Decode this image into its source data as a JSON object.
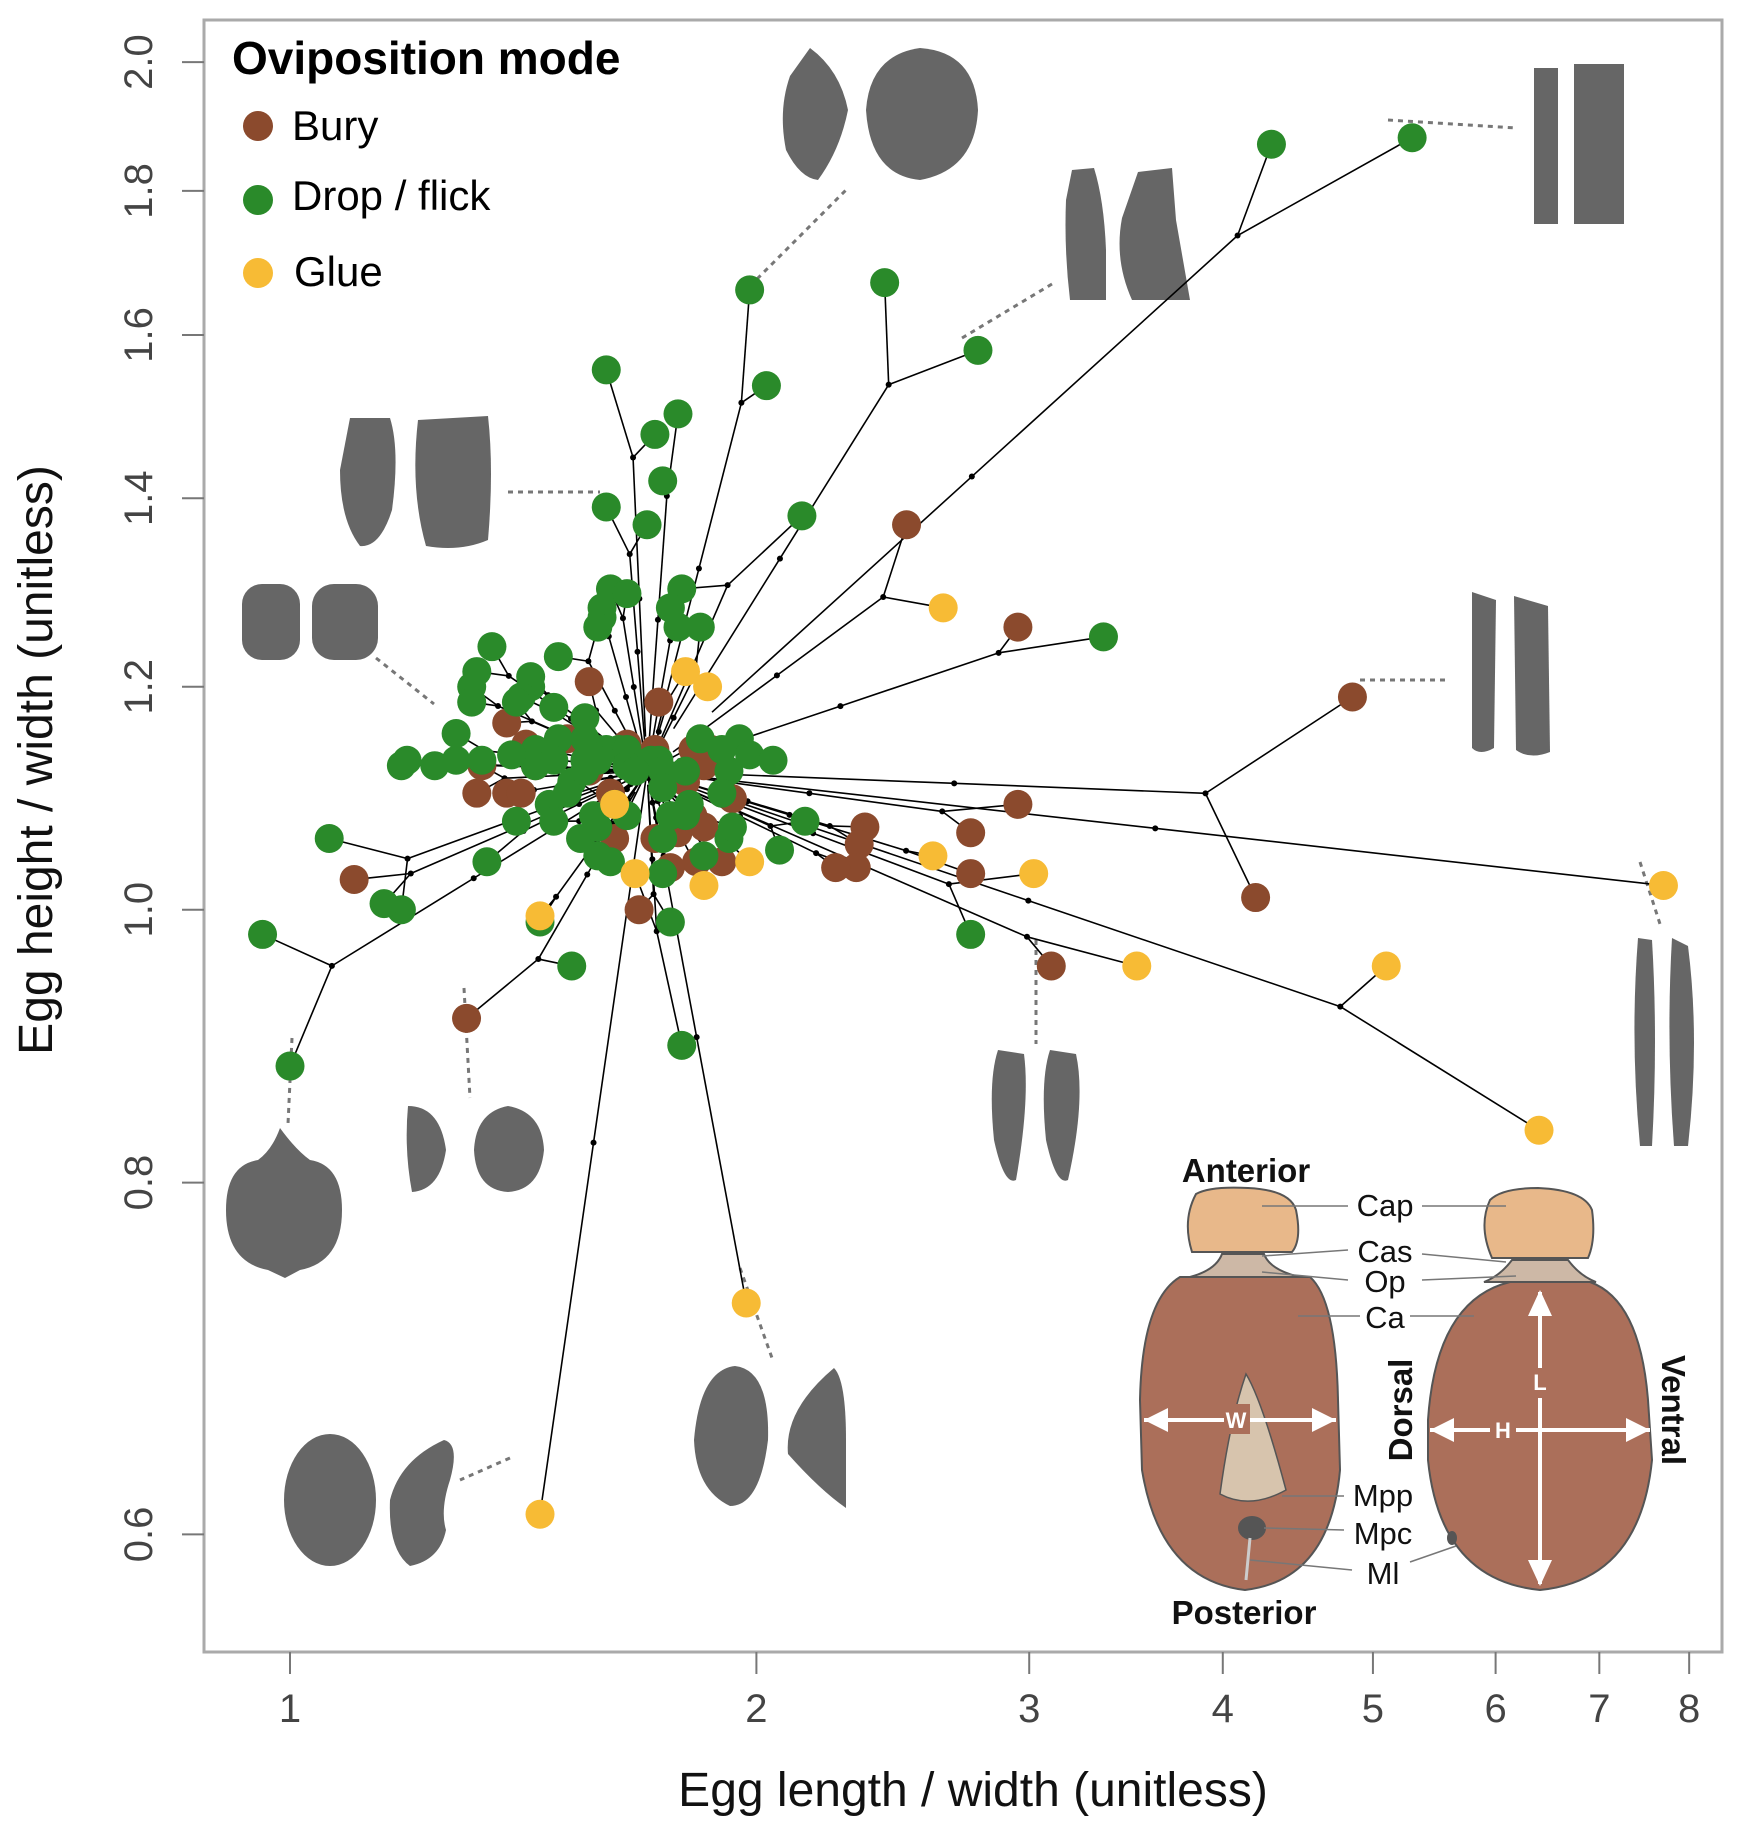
{
  "chart_data": {
    "type": "scatter",
    "x_scale": "log",
    "y_scale": "log",
    "xlabel": "Egg length / width (unitless)",
    "ylabel": "Egg height / width (unitless)",
    "xlim": [
      0.88,
      8.4
    ],
    "ylim": [
      0.545,
      2.07
    ],
    "x_ticks": [
      1,
      2,
      3,
      4,
      5,
      6,
      7,
      8
    ],
    "y_ticks": [
      0.6,
      0.8,
      1.0,
      1.2,
      1.4,
      1.6,
      1.8,
      2.0
    ],
    "x_tick_labels": [
      "1",
      "2",
      "3",
      "4",
      "5",
      "6",
      "7",
      "8"
    ],
    "y_tick_labels": [
      "0.6",
      "0.8",
      "1.0",
      "1.2",
      "1.4",
      "1.6",
      "1.8",
      "2.0"
    ],
    "legend": {
      "title": "Oviposition mode",
      "position": "top-left",
      "entries": [
        {
          "key": "bury",
          "label": "Bury",
          "color": "#8b4a2d"
        },
        {
          "key": "drop",
          "label": "Drop / flick",
          "color": "#2a8a2a"
        },
        {
          "key": "glue",
          "label": "Glue",
          "color": "#f7bb35"
        }
      ]
    },
    "series": [
      {
        "name": "Bury",
        "color": "#8b4a2d",
        "points": [
          [
            2.5,
            1.37
          ],
          [
            2.95,
            1.26
          ],
          [
            4.85,
            1.19
          ],
          [
            4.2,
            1.01
          ],
          [
            3.1,
            0.955
          ],
          [
            2.95,
            1.09
          ],
          [
            2.75,
            1.065
          ],
          [
            2.75,
            1.03
          ],
          [
            2.35,
            1.07
          ],
          [
            2.33,
            1.055
          ],
          [
            2.32,
            1.035
          ],
          [
            2.25,
            1.035
          ],
          [
            1.1,
            1.025
          ],
          [
            1.3,
            0.915
          ],
          [
            1.56,
            1.205
          ],
          [
            1.73,
            1.185
          ],
          [
            1.82,
            1.14
          ],
          [
            1.87,
            1.14
          ],
          [
            1.85,
            1.125
          ],
          [
            1.8,
            1.11
          ],
          [
            1.82,
            1.08
          ],
          [
            1.78,
            1.065
          ],
          [
            1.74,
            1.06
          ],
          [
            1.72,
            1.06
          ],
          [
            1.62,
            1.06
          ],
          [
            1.85,
            1.07
          ],
          [
            1.93,
            1.095
          ],
          [
            1.9,
            1.04
          ],
          [
            1.83,
            1.04
          ],
          [
            1.76,
            1.035
          ],
          [
            1.68,
            1.0
          ],
          [
            1.42,
            1.145
          ],
          [
            1.38,
            1.165
          ],
          [
            1.44,
            1.125
          ],
          [
            1.38,
            1.1
          ],
          [
            1.41,
            1.1
          ],
          [
            1.32,
            1.1
          ],
          [
            1.33,
            1.125
          ],
          [
            1.51,
            1.15
          ],
          [
            1.56,
            1.12
          ],
          [
            1.61,
            1.1
          ],
          [
            1.72,
            1.14
          ],
          [
            1.65,
            1.145
          ]
        ]
      },
      {
        "name": "Drop / flick",
        "color": "#2a8a2a",
        "points": [
          [
            4.3,
            1.87
          ],
          [
            5.3,
            1.88
          ],
          [
            3.35,
            1.25
          ],
          [
            2.42,
            1.67
          ],
          [
            1.98,
            1.66
          ],
          [
            2.78,
            1.58
          ],
          [
            1.6,
            1.555
          ],
          [
            2.03,
            1.535
          ],
          [
            1.78,
            1.5
          ],
          [
            1.72,
            1.475
          ],
          [
            1.74,
            1.42
          ],
          [
            1.6,
            1.39
          ],
          [
            1.7,
            1.37
          ],
          [
            2.14,
            1.38
          ],
          [
            1.61,
            1.3
          ],
          [
            1.65,
            1.295
          ],
          [
            1.59,
            1.28
          ],
          [
            1.59,
            1.27
          ],
          [
            1.79,
            1.3
          ],
          [
            1.76,
            1.28
          ],
          [
            1.78,
            1.26
          ],
          [
            1.84,
            1.26
          ],
          [
            1.58,
            1.26
          ],
          [
            1.49,
            1.23
          ],
          [
            1.35,
            1.24
          ],
          [
            1.32,
            1.215
          ],
          [
            1.43,
            1.21
          ],
          [
            1.43,
            1.2
          ],
          [
            1.41,
            1.19
          ],
          [
            1.31,
            1.2
          ],
          [
            1.31,
            1.185
          ],
          [
            1.4,
            1.185
          ],
          [
            1.48,
            1.18
          ],
          [
            1.55,
            1.17
          ],
          [
            1.55,
            1.15
          ],
          [
            1.49,
            1.15
          ],
          [
            1.58,
            1.14
          ],
          [
            1.6,
            1.14
          ],
          [
            1.63,
            1.14
          ],
          [
            1.65,
            1.14
          ],
          [
            1.65,
            1.125
          ],
          [
            1.71,
            1.13
          ],
          [
            1.73,
            1.13
          ],
          [
            1.58,
            1.13
          ],
          [
            1.55,
            1.13
          ],
          [
            1.48,
            1.13
          ],
          [
            1.44,
            1.14
          ],
          [
            1.44,
            1.125
          ],
          [
            1.52,
            1.11
          ],
          [
            1.55,
            1.12
          ],
          [
            1.56,
            1.135
          ],
          [
            1.67,
            1.12
          ],
          [
            1.74,
            1.12
          ],
          [
            1.74,
            1.105
          ],
          [
            1.84,
            1.15
          ],
          [
            1.9,
            1.14
          ],
          [
            1.95,
            1.15
          ],
          [
            1.98,
            1.135
          ],
          [
            1.92,
            1.12
          ],
          [
            2.05,
            1.13
          ],
          [
            1.8,
            1.12
          ],
          [
            1.81,
            1.09
          ],
          [
            1.8,
            1.08
          ],
          [
            1.92,
            1.06
          ],
          [
            1.74,
            1.06
          ],
          [
            1.62,
            1.09
          ],
          [
            1.57,
            1.08
          ],
          [
            1.51,
            1.1
          ],
          [
            1.47,
            1.09
          ],
          [
            1.48,
            1.075
          ],
          [
            1.4,
            1.075
          ],
          [
            1.28,
            1.155
          ],
          [
            1.24,
            1.125
          ],
          [
            1.18,
            1.125
          ],
          [
            1.19,
            1.13
          ],
          [
            1.28,
            1.13
          ],
          [
            1.33,
            1.13
          ],
          [
            1.39,
            1.135
          ],
          [
            1.54,
            1.06
          ],
          [
            1.58,
            1.045
          ],
          [
            1.61,
            1.04
          ],
          [
            1.74,
            1.03
          ],
          [
            1.85,
            1.045
          ],
          [
            1.58,
            1.07
          ],
          [
            1.65,
            1.08
          ],
          [
            1.76,
            1.08
          ],
          [
            1.9,
            1.1
          ],
          [
            1.93,
            1.07
          ],
          [
            2.15,
            1.075
          ],
          [
            2.07,
            1.05
          ],
          [
            1.34,
            1.04
          ],
          [
            1.45,
            0.99
          ],
          [
            1.52,
            0.955
          ],
          [
            1.18,
            1.0
          ],
          [
            1.15,
            1.005
          ],
          [
            1.06,
            1.06
          ],
          [
            0.96,
            0.98
          ],
          [
            1.0,
            0.88
          ],
          [
            1.79,
            0.895
          ],
          [
            2.75,
            0.98
          ],
          [
            1.76,
            0.99
          ]
        ]
      },
      {
        "name": "Glue",
        "color": "#f7bb35",
        "points": [
          [
            2.64,
            1.28
          ],
          [
            1.8,
            1.215
          ],
          [
            1.86,
            1.2
          ],
          [
            1.62,
            1.09
          ],
          [
            1.67,
            1.03
          ],
          [
            1.98,
            1.04
          ],
          [
            1.85,
            1.02
          ],
          [
            1.45,
            0.995
          ],
          [
            2.6,
            1.045
          ],
          [
            3.02,
            1.03
          ],
          [
            3.52,
            0.955
          ],
          [
            5.1,
            0.955
          ],
          [
            7.7,
            1.02
          ],
          [
            6.4,
            0.835
          ],
          [
            1.97,
            0.725
          ],
          [
            1.45,
            0.61
          ]
        ]
      }
    ],
    "insets": {
      "egg_diagram_labels": {
        "anterior": "Anterior",
        "posterior": "Posterior",
        "dorsal": "Dorsal",
        "ventral": "Ventral",
        "cap": "Cap",
        "cas": "Cas",
        "op": "Op",
        "ca": "Ca",
        "mpp": "Mpp",
        "mpc": "Mpc",
        "ml": "Ml",
        "w": "W",
        "h": "H",
        "l": "L"
      }
    }
  }
}
